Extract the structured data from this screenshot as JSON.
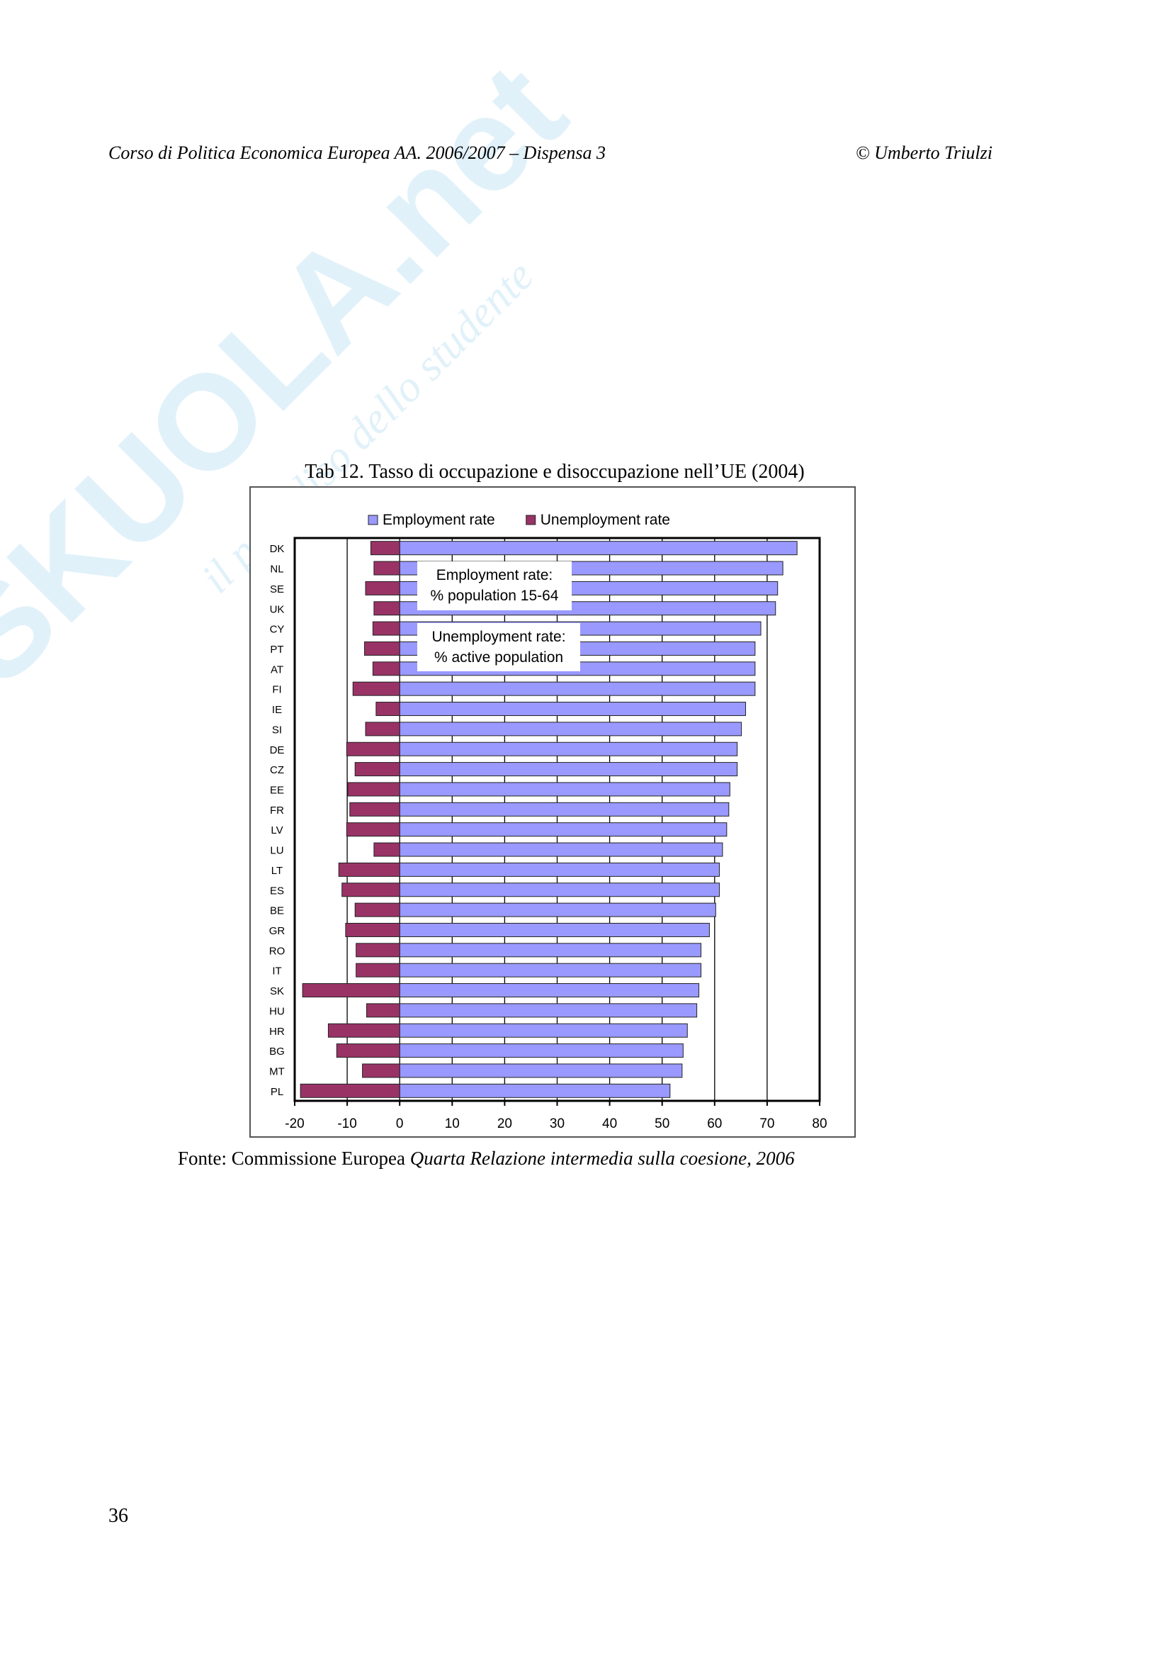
{
  "header": {
    "left": "Corso di Politica Economica Europea AA. 2006/2007 – Dispensa  3",
    "right": "© Umberto Triulzi"
  },
  "watermark": {
    "brand": "SKUOLA.net",
    "tagline": "il paradiso dello studente"
  },
  "chart_data": {
    "type": "hbar",
    "title": "Tab 12. Tasso di occupazione e disoccupazione nell’UE (2004)",
    "categories": [
      "DK",
      "NL",
      "SE",
      "UK",
      "CY",
      "PT",
      "AT",
      "FI",
      "IE",
      "SI",
      "DE",
      "CZ",
      "EE",
      "FR",
      "LV",
      "LU",
      "LT",
      "ES",
      "BE",
      "GR",
      "RO",
      "IT",
      "SK",
      "HU",
      "HR",
      "BG",
      "MT",
      "PL"
    ],
    "series": [
      {
        "name": "Employment rate",
        "color": "#9999ff",
        "values": [
          75.7,
          73.0,
          72.0,
          71.6,
          68.8,
          67.7,
          67.7,
          67.7,
          65.9,
          65.1,
          64.3,
          64.3,
          62.9,
          62.7,
          62.3,
          61.5,
          60.9,
          60.9,
          60.2,
          59.0,
          57.4,
          57.4,
          57.0,
          56.6,
          54.8,
          54.0,
          53.8,
          51.5
        ]
      },
      {
        "name": "Unemployment rate",
        "color": "#993366",
        "values": [
          -5.5,
          -4.9,
          -6.5,
          -4.9,
          -5.1,
          -6.7,
          -5.1,
          -8.9,
          -4.5,
          -6.5,
          -10.1,
          -8.5,
          -9.9,
          -9.5,
          -10.1,
          -4.9,
          -11.6,
          -11.0,
          -8.5,
          -10.3,
          -8.3,
          -8.3,
          -18.5,
          -6.3,
          -13.6,
          -12.0,
          -7.1,
          -18.9
        ]
      }
    ],
    "xlim": [
      -20,
      80
    ],
    "xticks": [
      -20,
      -10,
      0,
      10,
      20,
      30,
      40,
      50,
      60,
      70,
      80
    ],
    "grid": true,
    "legend": "top",
    "annotations": [
      [
        "Employment rate:",
        "% population 15-64"
      ],
      [
        "Unemployment rate:",
        "% active population"
      ]
    ]
  },
  "source": {
    "text": "Fonte: Commissione Europea ",
    "italic": "Quarta Relazione intermedia sulla coesione, 2006"
  },
  "page_number": "36"
}
